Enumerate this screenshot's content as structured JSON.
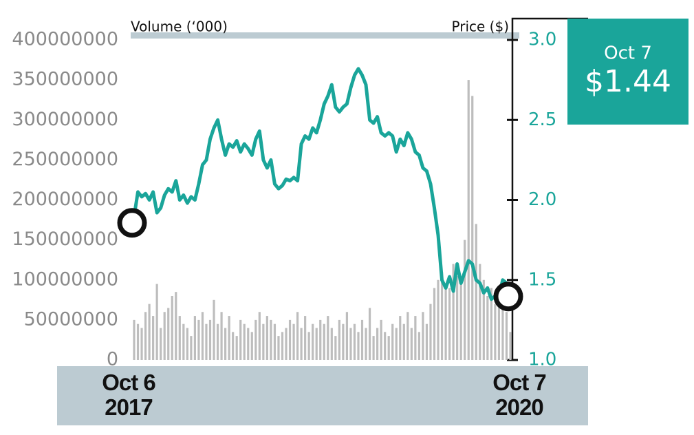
{
  "chart_data": {
    "type": "bar-line",
    "categories": [
      "Oct 6 2017",
      null,
      null,
      null,
      null,
      null,
      null,
      null,
      null,
      null,
      null,
      null,
      null,
      null,
      null,
      null,
      null,
      null,
      null,
      null,
      null,
      null,
      null,
      null,
      null,
      null,
      null,
      null,
      null,
      null,
      null,
      null,
      null,
      null,
      null,
      null,
      null,
      null,
      null,
      null,
      null,
      null,
      null,
      null,
      null,
      null,
      null,
      null,
      null,
      null,
      null,
      null,
      null,
      null,
      null,
      null,
      null,
      null,
      null,
      null,
      null,
      null,
      null,
      null,
      null,
      null,
      null,
      null,
      null,
      null,
      null,
      null,
      null,
      null,
      null,
      null,
      null,
      null,
      null,
      null,
      null,
      null,
      null,
      null,
      null,
      null,
      null,
      null,
      null,
      null,
      null,
      null,
      null,
      null,
      null,
      null,
      null,
      null,
      null,
      "Oct 7 2020"
    ],
    "series": [
      {
        "name": "Volume (‘000)",
        "type": "bar",
        "color": "#bdbdbd",
        "axis": "y",
        "values": [
          50000000,
          45000000,
          40000000,
          60000000,
          70000000,
          55000000,
          95000000,
          40000000,
          60000000,
          65000000,
          80000000,
          85000000,
          55000000,
          45000000,
          40000000,
          30000000,
          55000000,
          50000000,
          60000000,
          45000000,
          50000000,
          75000000,
          45000000,
          60000000,
          40000000,
          55000000,
          35000000,
          30000000,
          50000000,
          45000000,
          40000000,
          35000000,
          50000000,
          60000000,
          45000000,
          55000000,
          50000000,
          45000000,
          30000000,
          35000000,
          40000000,
          50000000,
          45000000,
          60000000,
          40000000,
          55000000,
          35000000,
          45000000,
          40000000,
          50000000,
          45000000,
          55000000,
          40000000,
          30000000,
          50000000,
          45000000,
          60000000,
          40000000,
          45000000,
          35000000,
          50000000,
          40000000,
          65000000,
          30000000,
          40000000,
          50000000,
          35000000,
          30000000,
          45000000,
          40000000,
          55000000,
          45000000,
          60000000,
          40000000,
          55000000,
          35000000,
          60000000,
          45000000,
          70000000,
          90000000,
          100000000,
          110000000,
          95000000,
          90000000,
          120000000,
          105000000,
          100000000,
          150000000,
          350000000,
          330000000,
          170000000,
          120000000,
          100000000,
          80000000,
          90000000,
          70000000,
          85000000,
          75000000,
          60000000,
          35000000
        ]
      },
      {
        "name": "Price ($)",
        "type": "line",
        "color": "#1aa59a",
        "axis": "y2",
        "values": [
          1.9,
          2.05,
          2.02,
          2.04,
          2.0,
          2.05,
          1.92,
          1.95,
          2.03,
          2.07,
          2.05,
          2.12,
          2.0,
          2.03,
          1.98,
          2.02,
          2.0,
          2.1,
          2.22,
          2.25,
          2.38,
          2.45,
          2.5,
          2.38,
          2.28,
          2.35,
          2.33,
          2.37,
          2.3,
          2.35,
          2.32,
          2.28,
          2.38,
          2.43,
          2.25,
          2.2,
          2.25,
          2.1,
          2.07,
          2.09,
          2.13,
          2.12,
          2.14,
          2.12,
          2.35,
          2.4,
          2.38,
          2.45,
          2.42,
          2.5,
          2.6,
          2.65,
          2.72,
          2.58,
          2.55,
          2.58,
          2.6,
          2.7,
          2.78,
          2.82,
          2.78,
          2.72,
          2.5,
          2.48,
          2.52,
          2.42,
          2.4,
          2.42,
          2.4,
          2.3,
          2.38,
          2.34,
          2.42,
          2.38,
          2.3,
          2.28,
          2.2,
          2.18,
          2.1,
          1.95,
          1.78,
          1.5,
          1.45,
          1.52,
          1.43,
          1.6,
          1.48,
          1.55,
          1.62,
          1.6,
          1.5,
          1.48,
          1.42,
          1.45,
          1.38,
          1.4,
          1.4,
          1.5,
          1.48,
          1.44
        ]
      }
    ],
    "ylim": [
      0,
      400000000
    ],
    "yticks": [
      0,
      50000000,
      100000000,
      150000000,
      200000000,
      250000000,
      300000000,
      350000000,
      400000000
    ],
    "y2lim": [
      1.0,
      3.0
    ],
    "y2ticks": [
      {
        "value": 1.0,
        "label": "1.0"
      },
      1.5,
      {
        "value": 2.0,
        "label": "2.0"
      },
      2.5,
      {
        "value": 3.0,
        "label": "3.0"
      }
    ],
    "annotation": {
      "date": "Oct 7",
      "price": "$1.44"
    }
  }
}
